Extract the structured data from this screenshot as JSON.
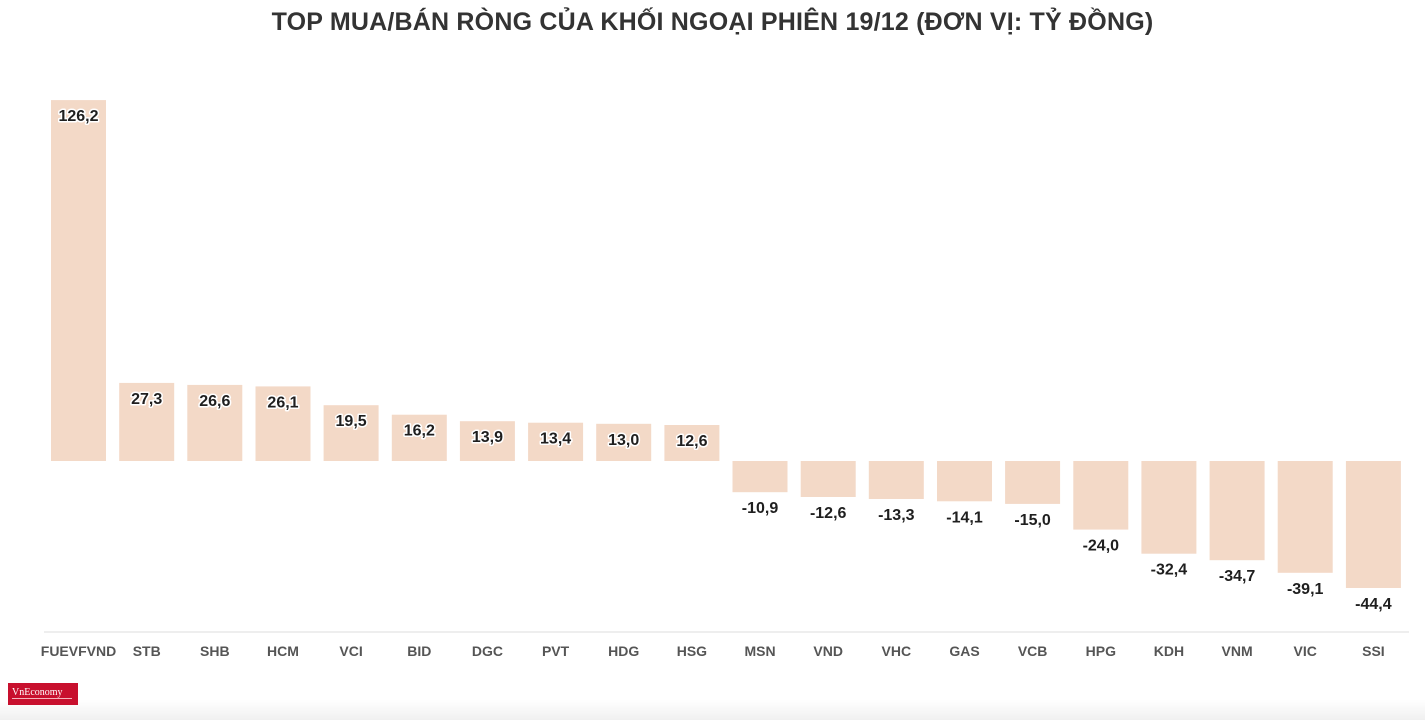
{
  "chart_data": {
    "type": "bar",
    "title": "TOP MUA/BÁN RÒNG CỦA KHỐI NGOẠI PHIÊN 19/12 (ĐƠN VỊ: TỶ ĐỒNG)",
    "categories": [
      "FUEVFVND",
      "STB",
      "SHB",
      "HCM",
      "VCI",
      "BID",
      "DGC",
      "PVT",
      "HDG",
      "HSG",
      "MSN",
      "VND",
      "VHC",
      "GAS",
      "VCB",
      "HPG",
      "KDH",
      "VNM",
      "VIC",
      "SSI"
    ],
    "values": [
      126.2,
      27.3,
      26.6,
      26.1,
      19.5,
      16.2,
      13.9,
      13.4,
      13.0,
      12.6,
      -10.9,
      -12.6,
      -13.3,
      -14.1,
      -15.0,
      -24.0,
      -32.4,
      -34.7,
      -39.1,
      -44.4
    ],
    "labels": [
      "126,2",
      "27,3",
      "26,6",
      "26,1",
      "19,5",
      "16,2",
      "13,9",
      "13,4",
      "13,0",
      "12,6",
      "-10,9",
      "-12,6",
      "-13,3",
      "-14,1",
      "-15,0",
      "-24,0",
      "-32,4",
      "-34,7",
      "-39,1",
      "-44,4"
    ],
    "bar_color": "#f3d9c7",
    "grid": false,
    "legend": "none"
  },
  "logo": {
    "text": "VnEconomy"
  }
}
